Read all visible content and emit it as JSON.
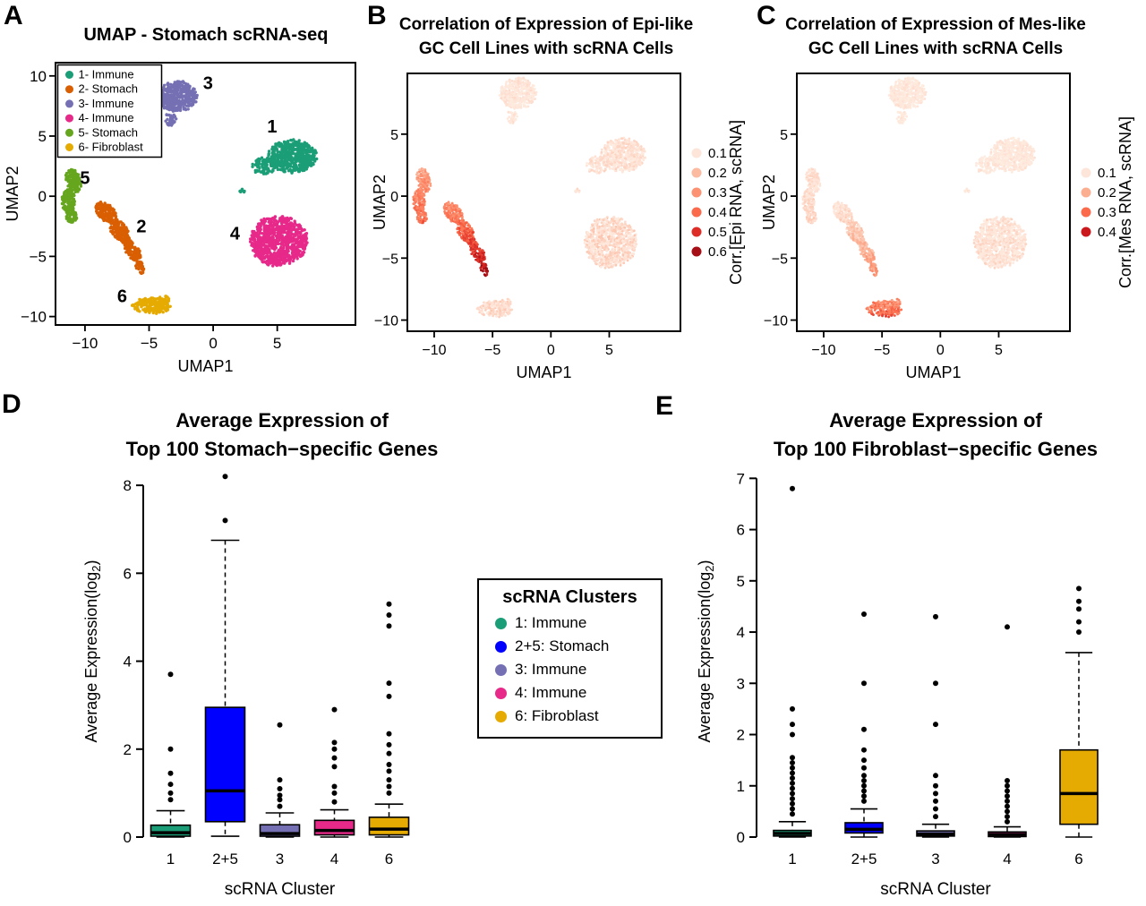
{
  "panels": {
    "a": {
      "letter": "A",
      "title": "UMAP - Stomach scRNA-seq"
    },
    "b": {
      "letter": "B",
      "title_line1": "Correlation of Expression of Epi-like",
      "title_line2": "GC Cell Lines with scRNA Cells"
    },
    "c": {
      "letter": "C",
      "title_line1": "Correlation of Expression of Mes-like",
      "title_line2": "GC Cell Lines with scRNA Cells"
    },
    "d": {
      "letter": "D",
      "title_line1": "Average Expression of",
      "title_line2": "Top 100 Stomach−specific Genes"
    },
    "e": {
      "letter": "E",
      "title_line1": "Average Expression of",
      "title_line2": "Top 100 Fibroblast−specific Genes"
    }
  },
  "cluster_legend": {
    "title": "scRNA Clusters",
    "items": [
      {
        "label": "1: Immune",
        "color": "#1B9E77"
      },
      {
        "label": "2+5: Stomach",
        "color": "#0000FF"
      },
      {
        "label": "3: Immune",
        "color": "#7570B3"
      },
      {
        "label": "4: Immune",
        "color": "#E7298A"
      },
      {
        "label": "6: Fibroblast",
        "color": "#E6AB02"
      }
    ]
  },
  "chart_data": [
    {
      "id": "umap_a",
      "type": "scatter",
      "title": "UMAP - Stomach scRNA-seq",
      "xlabel": "UMAP1",
      "ylabel": "UMAP2",
      "xlim": [
        -12.3,
        11.1
      ],
      "ylim": [
        -10.7,
        11.1
      ],
      "xticks": [
        -10,
        -5,
        0,
        5
      ],
      "yticks": [
        -10,
        -5,
        0,
        5,
        10
      ],
      "legend": [
        {
          "label": "1- Immune",
          "color": "#1B9E77"
        },
        {
          "label": "2- Stomach",
          "color": "#D95F02"
        },
        {
          "label": "3- Immune",
          "color": "#7570B3"
        },
        {
          "label": "4- Immune",
          "color": "#E7298A"
        },
        {
          "label": "5- Stomach",
          "color": "#66A61E"
        },
        {
          "label": "6- Fibroblast",
          "color": "#E6AB02"
        }
      ],
      "cluster_labels": [
        {
          "text": "1",
          "x": 4.6,
          "y": 5.3
        },
        {
          "text": "2",
          "x": -5.6,
          "y": -3.0
        },
        {
          "text": "3",
          "x": -0.4,
          "y": 8.9
        },
        {
          "text": "4",
          "x": 1.7,
          "y": -3.6
        },
        {
          "text": "5",
          "x": -10.0,
          "y": 1.0
        },
        {
          "text": "6",
          "x": -7.1,
          "y": -8.8
        }
      ],
      "clusters": [
        {
          "id": 1,
          "name": "Immune",
          "color": "#1B9E77",
          "blobs": [
            {
              "cx": 6.2,
              "cy": 3.3,
              "rx": 1.9,
              "ry": 1.35,
              "n": 520
            },
            {
              "cx": 4.0,
              "cy": 2.5,
              "rx": 1.0,
              "ry": 0.7,
              "n": 90
            },
            {
              "cx": 2.3,
              "cy": 0.4,
              "rx": 0.22,
              "ry": 0.2,
              "n": 8
            }
          ]
        },
        {
          "id": 2,
          "name": "Stomach",
          "color": "#D95F02",
          "blobs": [
            {
              "cx": -8.35,
              "cy": -1.35,
              "rx": 1.0,
              "ry": 0.62,
              "rot": -50,
              "n": 150
            },
            {
              "cx": -7.3,
              "cy": -2.9,
              "rx": 1.1,
              "ry": 0.6,
              "rot": -57,
              "n": 170
            },
            {
              "cx": -6.3,
              "cy": -4.5,
              "rx": 0.95,
              "ry": 0.5,
              "rot": -60,
              "n": 110
            },
            {
              "cx": -5.7,
              "cy": -5.9,
              "rx": 0.55,
              "ry": 0.3,
              "rot": -70,
              "n": 30
            }
          ]
        },
        {
          "id": 3,
          "name": "Immune",
          "color": "#7570B3",
          "blobs": [
            {
              "cx": -2.8,
              "cy": 8.3,
              "rx": 1.55,
              "ry": 1.25,
              "n": 420
            },
            {
              "cx": -3.3,
              "cy": 6.4,
              "rx": 0.5,
              "ry": 0.55,
              "n": 35
            }
          ]
        },
        {
          "id": 4,
          "name": "Immune",
          "color": "#E7298A",
          "blobs": [
            {
              "cx": 5.1,
              "cy": -3.7,
              "rx": 2.2,
              "ry": 2.05,
              "n": 850
            }
          ]
        },
        {
          "id": 5,
          "name": "Stomach",
          "color": "#66A61E",
          "blobs": [
            {
              "cx": -10.9,
              "cy": 1.3,
              "rx": 0.55,
              "ry": 0.95,
              "rot": 15,
              "n": 140
            },
            {
              "cx": -11.3,
              "cy": -0.4,
              "rx": 0.5,
              "ry": 1.0,
              "n": 140
            },
            {
              "cx": -11.05,
              "cy": -1.7,
              "rx": 0.45,
              "ry": 0.5,
              "n": 55
            }
          ]
        },
        {
          "id": 6,
          "name": "Fibroblast",
          "color": "#E6AB02",
          "blobs": [
            {
              "cx": -4.8,
              "cy": -9.1,
              "rx": 1.5,
              "ry": 0.65,
              "n": 200
            },
            {
              "cx": -3.9,
              "cy": -8.6,
              "rx": 0.5,
              "ry": 0.35,
              "n": 30
            }
          ]
        }
      ]
    },
    {
      "id": "umap_b",
      "type": "scatter",
      "title": [
        "Correlation of Expression of Epi-like",
        "GC Cell Lines with scRNA Cells"
      ],
      "xlabel": "UMAP1",
      "ylabel": "UMAP2",
      "xlim": [
        -12.3,
        11.1
      ],
      "ylim": [
        -10.9,
        9.9
      ],
      "xticks": [
        -10,
        -5,
        0,
        5
      ],
      "yticks": [
        -10,
        -5,
        0,
        5
      ],
      "clusters_ref": "umap_a",
      "corr_by_cluster": {
        "1": {
          "top": 0.1,
          "bottom": 0.1,
          "noise": 0.05
        },
        "2": {
          "top": 0.3,
          "bottom": 0.6,
          "noise": 0.06
        },
        "3": {
          "top": 0.09,
          "bottom": 0.09,
          "noise": 0.04
        },
        "4": {
          "top": 0.12,
          "bottom": 0.12,
          "noise": 0.06
        },
        "5": {
          "top": 0.26,
          "bottom": 0.4,
          "noise": 0.06
        },
        "6": {
          "top": 0.12,
          "bottom": 0.12,
          "noise": 0.05
        }
      },
      "color_scale_stops": [
        [
          0.0,
          "#FFF3E6"
        ],
        [
          0.1,
          "#FEE5D9"
        ],
        [
          0.2,
          "#FCBBA1"
        ],
        [
          0.3,
          "#FC9272"
        ],
        [
          0.4,
          "#FB6A4A"
        ],
        [
          0.5,
          "#DE2D26"
        ],
        [
          0.6,
          "#A50F15"
        ],
        [
          0.7,
          "#67000D"
        ]
      ],
      "color_legend": {
        "label": "Corr.[Epi RNA, scRNA]",
        "values": [
          "0.1",
          "0.2",
          "0.3",
          "0.4",
          "0.5",
          "0.6"
        ],
        "colors": [
          "#FEE5D9",
          "#FCBBA1",
          "#FC9272",
          "#FB6A4A",
          "#DE2D26",
          "#A50F15"
        ]
      }
    },
    {
      "id": "umap_c",
      "type": "scatter",
      "title": [
        "Correlation of Expression of Mes-like",
        "GC Cell Lines with scRNA Cells"
      ],
      "xlabel": "UMAP1",
      "ylabel": "UMAP2",
      "xlim": [
        -12.3,
        11.1
      ],
      "ylim": [
        -10.9,
        9.9
      ],
      "xticks": [
        -10,
        -5,
        0,
        5
      ],
      "yticks": [
        -10,
        -5,
        0,
        5
      ],
      "clusters_ref": "umap_a",
      "corr_by_cluster": {
        "1": {
          "top": 0.08,
          "bottom": 0.08,
          "noise": 0.04
        },
        "2": {
          "top": 0.08,
          "bottom": 0.3,
          "noise": 0.05
        },
        "3": {
          "top": 0.08,
          "bottom": 0.08,
          "noise": 0.04
        },
        "4": {
          "top": 0.1,
          "bottom": 0.1,
          "noise": 0.05
        },
        "5": {
          "top": 0.1,
          "bottom": 0.14,
          "noise": 0.04
        },
        "6": {
          "top": 0.3,
          "bottom": 0.42,
          "noise": 0.08
        }
      },
      "color_scale_stops": [
        [
          0.0,
          "#FFF3E6"
        ],
        [
          0.1,
          "#FEE5D9"
        ],
        [
          0.2,
          "#FCBBA1"
        ],
        [
          0.3,
          "#FC9272"
        ],
        [
          0.4,
          "#FB6A4A"
        ],
        [
          0.5,
          "#DE2D26"
        ],
        [
          0.6,
          "#A50F15"
        ],
        [
          0.7,
          "#67000D"
        ]
      ],
      "color_legend": {
        "label": "Corr.[Mes RNA, scRNA]",
        "values": [
          "0.1",
          "0.2",
          "0.3",
          "0.4"
        ],
        "colors": [
          "#FEE5D9",
          "#FCAE91",
          "#FB6A4A",
          "#CB181D"
        ]
      }
    },
    {
      "id": "box_d",
      "type": "boxplot",
      "title": [
        "Average Expression of",
        "Top 100 Stomach−specific Genes"
      ],
      "xlabel": "scRNA Cluster",
      "ylabel": "Average Expression(log2)",
      "ylim": [
        0,
        8.45
      ],
      "yticks": [
        0,
        2,
        4,
        6,
        8
      ],
      "categories": [
        "1",
        "2+5",
        "3",
        "4",
        "6"
      ],
      "boxes": [
        {
          "category": "1",
          "color": "#1B9E77",
          "q1": 0.02,
          "median": 0.1,
          "q3": 0.27,
          "lo": 0,
          "hi": 0.6,
          "outliers": [
            0.85,
            1.0,
            1.2,
            1.45,
            2.0,
            3.7
          ]
        },
        {
          "category": "2+5",
          "color": "#0000FF",
          "q1": 0.35,
          "median": 1.05,
          "q3": 2.95,
          "lo": 0.02,
          "hi": 6.75,
          "outliers": [
            7.2,
            8.2
          ]
        },
        {
          "category": "3",
          "color": "#7570B3",
          "q1": 0.02,
          "median": 0.08,
          "q3": 0.28,
          "lo": 0,
          "hi": 0.55,
          "outliers": [
            0.7,
            0.85,
            0.95,
            1.1,
            1.3,
            2.55
          ]
        },
        {
          "category": "4",
          "color": "#E7298A",
          "q1": 0.05,
          "median": 0.15,
          "q3": 0.38,
          "lo": 0,
          "hi": 0.62,
          "outliers": [
            0.8,
            1.0,
            1.15,
            1.6,
            1.8,
            2.0,
            2.15,
            2.9
          ]
        },
        {
          "category": "6",
          "color": "#E6AB02",
          "q1": 0.05,
          "median": 0.18,
          "q3": 0.45,
          "lo": 0,
          "hi": 0.75,
          "outliers": [
            1.0,
            1.15,
            1.3,
            1.5,
            1.65,
            1.9,
            2.1,
            2.35,
            3.2,
            3.5,
            4.8,
            5.05,
            5.3
          ]
        }
      ]
    },
    {
      "id": "box_e",
      "type": "boxplot",
      "title": [
        "Average Expression of",
        "Top 100 Fibroblast−specific Genes"
      ],
      "xlabel": "scRNA Cluster",
      "ylabel": "Average Expression(log2)",
      "ylim": [
        0,
        7.25
      ],
      "yticks": [
        0,
        1,
        2,
        3,
        4,
        5,
        6,
        7
      ],
      "categories": [
        "1",
        "2+5",
        "3",
        "4",
        "6"
      ],
      "boxes": [
        {
          "category": "1",
          "color": "#1B9E77",
          "q1": 0.02,
          "median": 0.07,
          "q3": 0.13,
          "lo": 0,
          "hi": 0.3,
          "outliers": [
            0.45,
            0.55,
            0.65,
            0.75,
            0.85,
            0.95,
            1.05,
            1.15,
            1.25,
            1.35,
            1.45,
            1.55,
            2.0,
            2.2,
            2.5,
            6.8
          ]
        },
        {
          "category": "2+5",
          "color": "#0000FF",
          "q1": 0.08,
          "median": 0.15,
          "q3": 0.28,
          "lo": 0,
          "hi": 0.55,
          "outliers": [
            0.7,
            0.8,
            0.9,
            1.0,
            1.1,
            1.2,
            1.35,
            1.5,
            1.7,
            2.1,
            3.0,
            4.35
          ]
        },
        {
          "category": "3",
          "color": "#7570B3",
          "q1": 0.02,
          "median": 0.06,
          "q3": 0.12,
          "lo": 0,
          "hi": 0.25,
          "outliers": [
            0.4,
            0.55,
            0.7,
            0.85,
            1.0,
            1.2,
            2.2,
            3.0,
            4.3
          ]
        },
        {
          "category": "4",
          "color": "#E7298A",
          "q1": 0.01,
          "median": 0.05,
          "q3": 0.1,
          "lo": 0,
          "hi": 0.2,
          "outliers": [
            0.3,
            0.4,
            0.5,
            0.6,
            0.7,
            0.8,
            0.9,
            1.0,
            1.1,
            4.1
          ]
        },
        {
          "category": "6",
          "color": "#E6AB02",
          "q1": 0.25,
          "median": 0.85,
          "q3": 1.7,
          "lo": 0,
          "hi": 3.6,
          "outliers": [
            4.0,
            4.2,
            4.45,
            4.6,
            4.85
          ]
        }
      ]
    }
  ]
}
